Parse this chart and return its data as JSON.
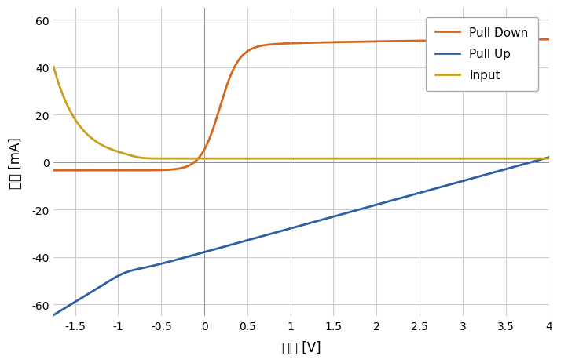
{
  "title": "",
  "xlabel": "電圧 [V]",
  "ylabel": "電流 [mA]",
  "xlim": [
    -1.75,
    4.0
  ],
  "ylim": [
    -65,
    65
  ],
  "xticks": [
    -1.5,
    -1.0,
    -0.5,
    0,
    0.5,
    1.0,
    1.5,
    2.0,
    2.5,
    3.0,
    3.5,
    4.0
  ],
  "yticks": [
    -60,
    -40,
    -20,
    0,
    20,
    40,
    60
  ],
  "pull_down_color": "#D4681E",
  "pull_up_color": "#2E5FA3",
  "input_color": "#C8A020",
  "legend_labels": [
    "Pull Down",
    "Pull Up",
    "Input"
  ],
  "background_color": "#FFFFFF",
  "grid_color": "#CCCCCC"
}
